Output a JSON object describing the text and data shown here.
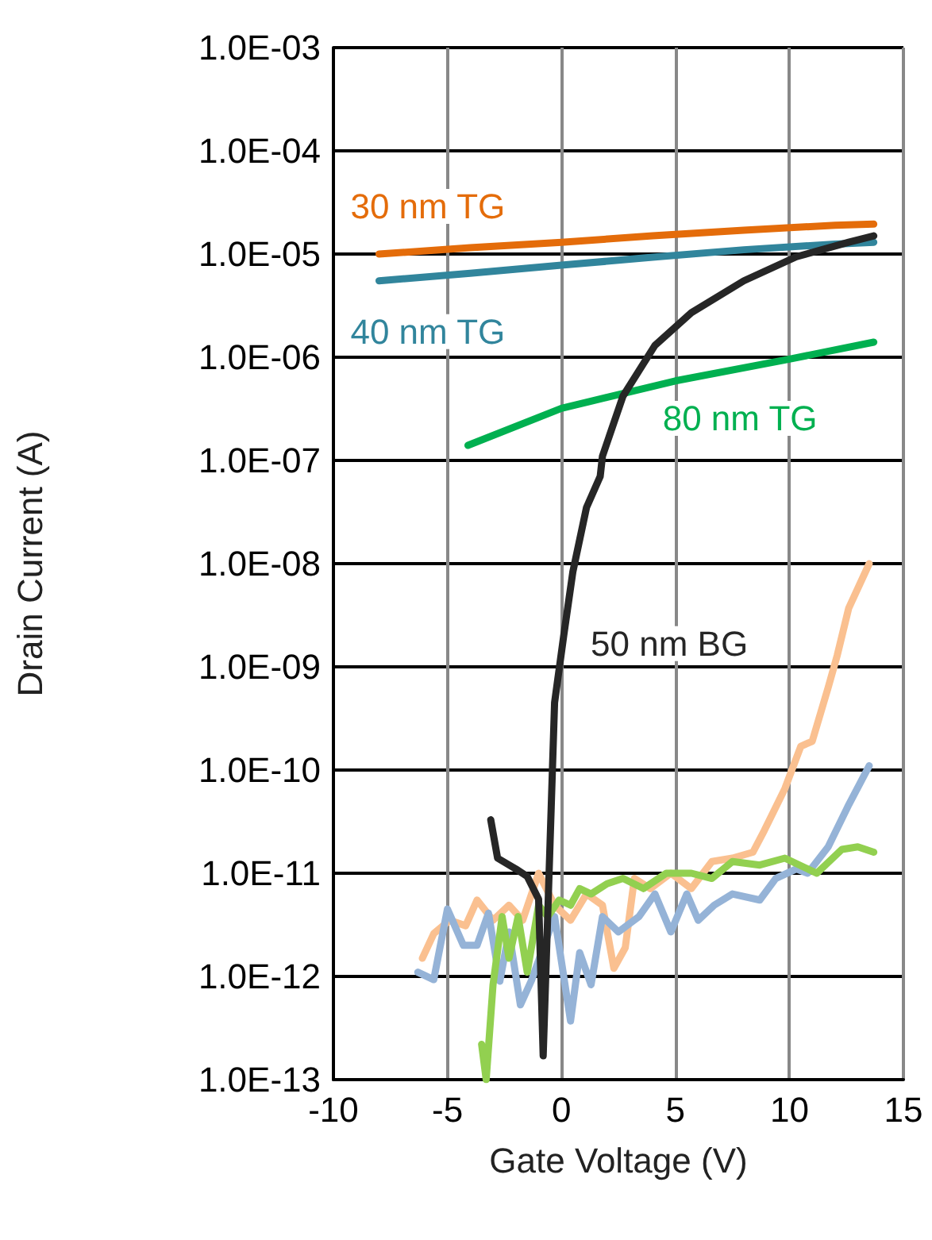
{
  "chart_data": {
    "type": "line",
    "xlabel": "Gate Voltage (V)",
    "ylabel": "Drain Current (A)",
    "log": "y",
    "grid": true,
    "legend": false,
    "marker": "none",
    "line_style": "solid",
    "xlim": [
      -10,
      15
    ],
    "xticks": [
      -10,
      -5,
      0,
      5,
      10,
      15
    ],
    "ylim": [
      1e-13,
      0.001
    ],
    "yticks": [
      {
        "value": 1e-13,
        "label": "1.0E-13"
      },
      {
        "value": 1e-12,
        "label": "1.0E-12"
      },
      {
        "value": 1e-11,
        "label": "1.0E-11"
      },
      {
        "value": 1e-10,
        "label": "1.0E-10"
      },
      {
        "value": 1e-09,
        "label": "1.0E-09"
      },
      {
        "value": 1e-08,
        "label": "1.0E-08"
      },
      {
        "value": 1e-07,
        "label": "1.0E-07"
      },
      {
        "value": 1e-06,
        "label": "1.0E-06"
      },
      {
        "value": 1e-05,
        "label": "1.0E-05"
      },
      {
        "value": 0.0001,
        "label": "1.0E-04"
      },
      {
        "value": 0.001,
        "label": "1.0E-03"
      }
    ],
    "series": [
      {
        "color": "#fac090",
        "x": [
          -6.1,
          -5.6,
          -4.9,
          -4.2,
          -3.7,
          -3.0,
          -2.3,
          -1.7,
          -1.0,
          -0.3,
          0.4,
          1.1,
          1.8,
          2.3,
          2.8,
          3.2,
          3.9,
          4.8,
          5.7,
          6.6,
          7.5,
          8.4,
          8.9,
          9.8,
          10.5,
          11.0,
          11.7,
          12.1,
          12.6,
          13.5
        ],
        "values": [
          1.5e-12,
          2.6e-12,
          3.5e-12,
          3.1e-12,
          5.5e-12,
          3.5e-12,
          4.9e-12,
          3.5e-12,
          1e-11,
          4.9e-12,
          3.5e-12,
          6.3e-12,
          4.9e-12,
          1.2e-12,
          1.9e-12,
          8.9e-12,
          7.1e-12,
          1e-11,
          7.1e-12,
          1.3e-11,
          1.4e-11,
          1.6e-11,
          2.6e-11,
          6.6e-11,
          1.7e-10,
          1.9e-10,
          6.3e-10,
          1.3e-09,
          3.7e-09,
          1e-08
        ]
      },
      {
        "color": "#95b3d7",
        "x": [
          -6.3,
          -5.6,
          -5.0,
          -4.3,
          -3.7,
          -3.2,
          -2.7,
          -2.3,
          -1.8,
          -1.3,
          -0.8,
          -0.3,
          0.4,
          0.8,
          1.3,
          1.8,
          2.5,
          3.4,
          4.1,
          4.8,
          5.5,
          6.0,
          6.7,
          7.5,
          8.7,
          9.4,
          10.3,
          10.8,
          11.7,
          12.6,
          13.5
        ],
        "values": [
          1.1e-12,
          9.3e-13,
          4.5e-12,
          2e-12,
          2e-12,
          4.1e-12,
          9e-13,
          2.7e-12,
          5.3e-13,
          9.3e-13,
          1.9e-12,
          3.8e-12,
          3.7e-13,
          1.7e-12,
          8.3e-13,
          3.8e-12,
          2.7e-12,
          3.8e-12,
          6.3e-12,
          2.7e-12,
          6.3e-12,
          3.5e-12,
          4.9e-12,
          6.3e-12,
          5.5e-12,
          8.9e-12,
          1.1e-11,
          1e-11,
          1.8e-11,
          4.6e-11,
          1.1e-10
        ]
      },
      {
        "color": "#92d050",
        "x": [
          -3.5,
          -3.3,
          -3.0,
          -2.6,
          -2.3,
          -1.9,
          -1.5,
          -1.0,
          -0.6,
          -0.1,
          0.4,
          0.8,
          1.3,
          2.0,
          2.7,
          3.6,
          4.6,
          5.7,
          6.6,
          7.5,
          8.7,
          9.8,
          11.2,
          12.3,
          13.0,
          13.7
        ],
        "values": [
          2.2e-13,
          1e-13,
          8.3e-13,
          3.8e-12,
          1.5e-12,
          3.8e-12,
          1.1e-12,
          4.9e-12,
          3.8e-12,
          5.5e-12,
          4.9e-12,
          7.1e-12,
          6.3e-12,
          7.9e-12,
          8.9e-12,
          7.1e-12,
          1e-11,
          1e-11,
          8.9e-12,
          1.3e-11,
          1.2e-11,
          1.4e-11,
          1e-11,
          1.7e-11,
          1.8e-11,
          1.6e-11
        ]
      },
      {
        "name": "30 nm TG",
        "color": "#e46c0a",
        "x": [
          -8,
          -4,
          0,
          4,
          8,
          12,
          13.7
        ],
        "values": [
          1e-05,
          1.15e-05,
          1.3e-05,
          1.5e-05,
          1.7e-05,
          1.9e-05,
          1.95e-05
        ]
      },
      {
        "name": "40 nm TG",
        "color": "#31859c",
        "x": [
          -8,
          -4,
          0,
          4,
          8,
          12,
          13.7
        ],
        "values": [
          5.5e-06,
          6.5e-06,
          7.8e-06,
          9.3e-06,
          1.1e-05,
          1.25e-05,
          1.3e-05
        ]
      },
      {
        "name": "80 nm TG",
        "color": "#00b050",
        "x": [
          -4.1,
          0,
          5,
          10,
          13.7
        ],
        "values": [
          1.4e-07,
          3.2e-07,
          5.9e-07,
          9.6e-07,
          1.4e-06
        ]
      },
      {
        "name": "50 nm BG",
        "color": "#262626",
        "x": [
          -3.1,
          -2.8,
          -2.0,
          -1.5,
          -1.0,
          -0.8,
          -0.3,
          0.1,
          0.5,
          1.1,
          1.7,
          1.8,
          2.7,
          4.1,
          5.7,
          8.0,
          10.3,
          12.6,
          13.7
        ],
        "values": [
          3.3e-11,
          1.4e-11,
          1.1e-11,
          9.3e-12,
          5.6e-12,
          1.7e-13,
          4.5e-10,
          2e-09,
          8.3e-09,
          3.5e-08,
          7e-08,
          1.1e-07,
          4.2e-07,
          1.3e-06,
          2.7e-06,
          5.5e-06,
          9.4e-06,
          1.3e-05,
          1.5e-05
        ]
      }
    ]
  }
}
